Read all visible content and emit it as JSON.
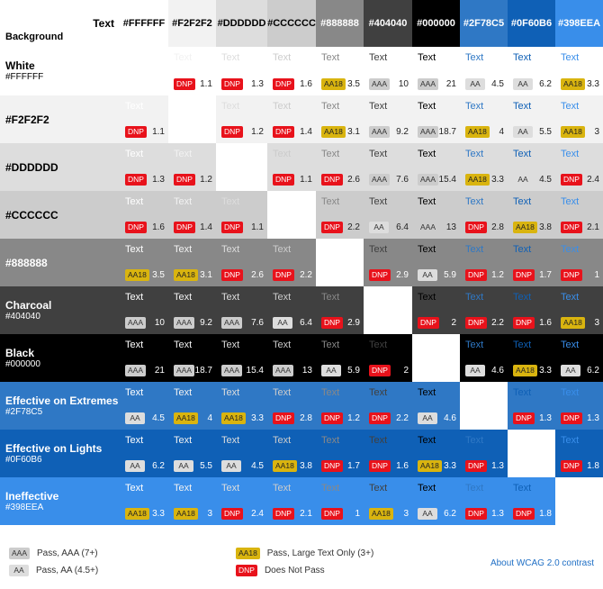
{
  "header": {
    "text_label": "Text",
    "background_label": "Background"
  },
  "text_colors": [
    {
      "label": "#FFFFFF",
      "color": "#FFFFFF"
    },
    {
      "label": "#F2F2F2",
      "color": "#F2F2F2"
    },
    {
      "label": "#DDDDDD",
      "color": "#DDDDDD"
    },
    {
      "label": "#CCCCCC",
      "color": "#CCCCCC"
    },
    {
      "label": "#888888",
      "color": "#888888"
    },
    {
      "label": "#404040",
      "color": "#404040"
    },
    {
      "label": "#000000",
      "color": "#000000"
    },
    {
      "label": "#2F78C5",
      "color": "#2F78C5"
    },
    {
      "label": "#0F60B6",
      "color": "#0F60B6"
    },
    {
      "label": "#398EEA",
      "color": "#398EEA"
    }
  ],
  "rows": [
    {
      "name": "White",
      "hex": "#FFFFFF",
      "bg": "#FFFFFF",
      "cells": [
        null,
        {
          "badge": "DNP",
          "ratio": "1.1"
        },
        {
          "badge": "DNP",
          "ratio": "1.3"
        },
        {
          "badge": "DNP",
          "ratio": "1.6"
        },
        {
          "badge": "AA18",
          "ratio": "3.5"
        },
        {
          "badge": "AAA",
          "ratio": "10"
        },
        {
          "badge": "AAA",
          "ratio": "21"
        },
        {
          "badge": "AA",
          "ratio": "4.5"
        },
        {
          "badge": "AA",
          "ratio": "6.2"
        },
        {
          "badge": "AA18",
          "ratio": "3.3"
        }
      ]
    },
    {
      "name": "#F2F2F2",
      "hex": "",
      "bg": "#F2F2F2",
      "cells": [
        {
          "badge": "DNP",
          "ratio": "1.1"
        },
        null,
        {
          "badge": "DNP",
          "ratio": "1.2"
        },
        {
          "badge": "DNP",
          "ratio": "1.4"
        },
        {
          "badge": "AA18",
          "ratio": "3.1"
        },
        {
          "badge": "AAA",
          "ratio": "9.2"
        },
        {
          "badge": "AAA",
          "ratio": "18.7"
        },
        {
          "badge": "AA18",
          "ratio": "4"
        },
        {
          "badge": "AA",
          "ratio": "5.5"
        },
        {
          "badge": "AA18",
          "ratio": "3"
        }
      ]
    },
    {
      "name": "#DDDDDD",
      "hex": "",
      "bg": "#DDDDDD",
      "cells": [
        {
          "badge": "DNP",
          "ratio": "1.3"
        },
        {
          "badge": "DNP",
          "ratio": "1.2"
        },
        null,
        {
          "badge": "DNP",
          "ratio": "1.1"
        },
        {
          "badge": "DNP",
          "ratio": "2.6"
        },
        {
          "badge": "AAA",
          "ratio": "7.6"
        },
        {
          "badge": "AAA",
          "ratio": "15.4"
        },
        {
          "badge": "AA18",
          "ratio": "3.3"
        },
        {
          "badge": "AA",
          "ratio": "4.5"
        },
        {
          "badge": "DNP",
          "ratio": "2.4"
        }
      ]
    },
    {
      "name": "#CCCCCC",
      "hex": "",
      "bg": "#CCCCCC",
      "cells": [
        {
          "badge": "DNP",
          "ratio": "1.6"
        },
        {
          "badge": "DNP",
          "ratio": "1.4"
        },
        {
          "badge": "DNP",
          "ratio": "1.1"
        },
        null,
        {
          "badge": "DNP",
          "ratio": "2.2"
        },
        {
          "badge": "AA",
          "ratio": "6.4"
        },
        {
          "badge": "AAA",
          "ratio": "13"
        },
        {
          "badge": "DNP",
          "ratio": "2.8"
        },
        {
          "badge": "AA18",
          "ratio": "3.8"
        },
        {
          "badge": "DNP",
          "ratio": "2.1"
        }
      ]
    },
    {
      "name": "#888888",
      "hex": "",
      "bg": "#888888",
      "cells": [
        {
          "badge": "AA18",
          "ratio": "3.5"
        },
        {
          "badge": "AA18",
          "ratio": "3.1"
        },
        {
          "badge": "DNP",
          "ratio": "2.6"
        },
        {
          "badge": "DNP",
          "ratio": "2.2"
        },
        null,
        {
          "badge": "DNP",
          "ratio": "2.9"
        },
        {
          "badge": "AA",
          "ratio": "5.9"
        },
        {
          "badge": "DNP",
          "ratio": "1.2"
        },
        {
          "badge": "DNP",
          "ratio": "1.7"
        },
        {
          "badge": "DNP",
          "ratio": "1"
        }
      ]
    },
    {
      "name": "Charcoal",
      "hex": "#404040",
      "bg": "#404040",
      "cells": [
        {
          "badge": "AAA",
          "ratio": "10"
        },
        {
          "badge": "AAA",
          "ratio": "9.2"
        },
        {
          "badge": "AAA",
          "ratio": "7.6"
        },
        {
          "badge": "AA",
          "ratio": "6.4"
        },
        {
          "badge": "DNP",
          "ratio": "2.9"
        },
        null,
        {
          "badge": "DNP",
          "ratio": "2"
        },
        {
          "badge": "DNP",
          "ratio": "2.2"
        },
        {
          "badge": "DNP",
          "ratio": "1.6"
        },
        {
          "badge": "AA18",
          "ratio": "3"
        }
      ]
    },
    {
      "name": "Black",
      "hex": "#000000",
      "bg": "#000000",
      "cells": [
        {
          "badge": "AAA",
          "ratio": "21"
        },
        {
          "badge": "AAA",
          "ratio": "18.7"
        },
        {
          "badge": "AAA",
          "ratio": "15.4"
        },
        {
          "badge": "AAA",
          "ratio": "13"
        },
        {
          "badge": "AA",
          "ratio": "5.9"
        },
        {
          "badge": "DNP",
          "ratio": "2"
        },
        null,
        {
          "badge": "AA",
          "ratio": "4.6"
        },
        {
          "badge": "AA18",
          "ratio": "3.3"
        },
        {
          "badge": "AA",
          "ratio": "6.2"
        }
      ]
    },
    {
      "name": "Effective on Extremes",
      "hex": "#2F78C5",
      "bg": "#2F78C5",
      "cells": [
        {
          "badge": "AA",
          "ratio": "4.5"
        },
        {
          "badge": "AA18",
          "ratio": "4"
        },
        {
          "badge": "AA18",
          "ratio": "3.3"
        },
        {
          "badge": "DNP",
          "ratio": "2.8"
        },
        {
          "badge": "DNP",
          "ratio": "1.2"
        },
        {
          "badge": "DNP",
          "ratio": "2.2"
        },
        {
          "badge": "AA",
          "ratio": "4.6"
        },
        null,
        {
          "badge": "DNP",
          "ratio": "1.3"
        },
        {
          "badge": "DNP",
          "ratio": "1.3"
        }
      ]
    },
    {
      "name": "Effective on Lights",
      "hex": "#0F60B6",
      "bg": "#0F60B6",
      "cells": [
        {
          "badge": "AA",
          "ratio": "6.2"
        },
        {
          "badge": "AA",
          "ratio": "5.5"
        },
        {
          "badge": "AA",
          "ratio": "4.5"
        },
        {
          "badge": "AA18",
          "ratio": "3.8"
        },
        {
          "badge": "DNP",
          "ratio": "1.7"
        },
        {
          "badge": "DNP",
          "ratio": "1.6"
        },
        {
          "badge": "AA18",
          "ratio": "3.3"
        },
        {
          "badge": "DNP",
          "ratio": "1.3"
        },
        null,
        {
          "badge": "DNP",
          "ratio": "1.8"
        }
      ]
    },
    {
      "name": "Ineffective",
      "hex": "#398EEA",
      "bg": "#398EEA",
      "cells": [
        {
          "badge": "AA18",
          "ratio": "3.3"
        },
        {
          "badge": "AA18",
          "ratio": "3"
        },
        {
          "badge": "DNP",
          "ratio": "2.4"
        },
        {
          "badge": "DNP",
          "ratio": "2.1"
        },
        {
          "badge": "DNP",
          "ratio": "1"
        },
        {
          "badge": "AA18",
          "ratio": "3"
        },
        {
          "badge": "AA",
          "ratio": "6.2"
        },
        {
          "badge": "DNP",
          "ratio": "1.3"
        },
        {
          "badge": "DNP",
          "ratio": "1.8"
        },
        null
      ]
    }
  ],
  "sample_text": "Text",
  "badge_styles": {
    "AAA": {
      "bg": "#CCCCCC",
      "fg": "#333333"
    },
    "AA": {
      "bg": "#DDDDDD",
      "fg": "#333333"
    },
    "AA18": {
      "bg": "#D9B40F",
      "fg": "#222222"
    },
    "DNP": {
      "bg": "#E8121B",
      "fg": "#FFFFFF"
    }
  },
  "legend": {
    "aaa": {
      "badge": "AAA",
      "text": "Pass, AAA (7+)"
    },
    "aa": {
      "badge": "AA",
      "text": "Pass, AA (4.5+)"
    },
    "aa18": {
      "badge": "AA18",
      "text": "Pass, Large Text Only (3+)"
    },
    "dnp": {
      "badge": "DNP",
      "text": "Does Not Pass"
    },
    "about_link": "About WCAG 2.0 contrast"
  }
}
